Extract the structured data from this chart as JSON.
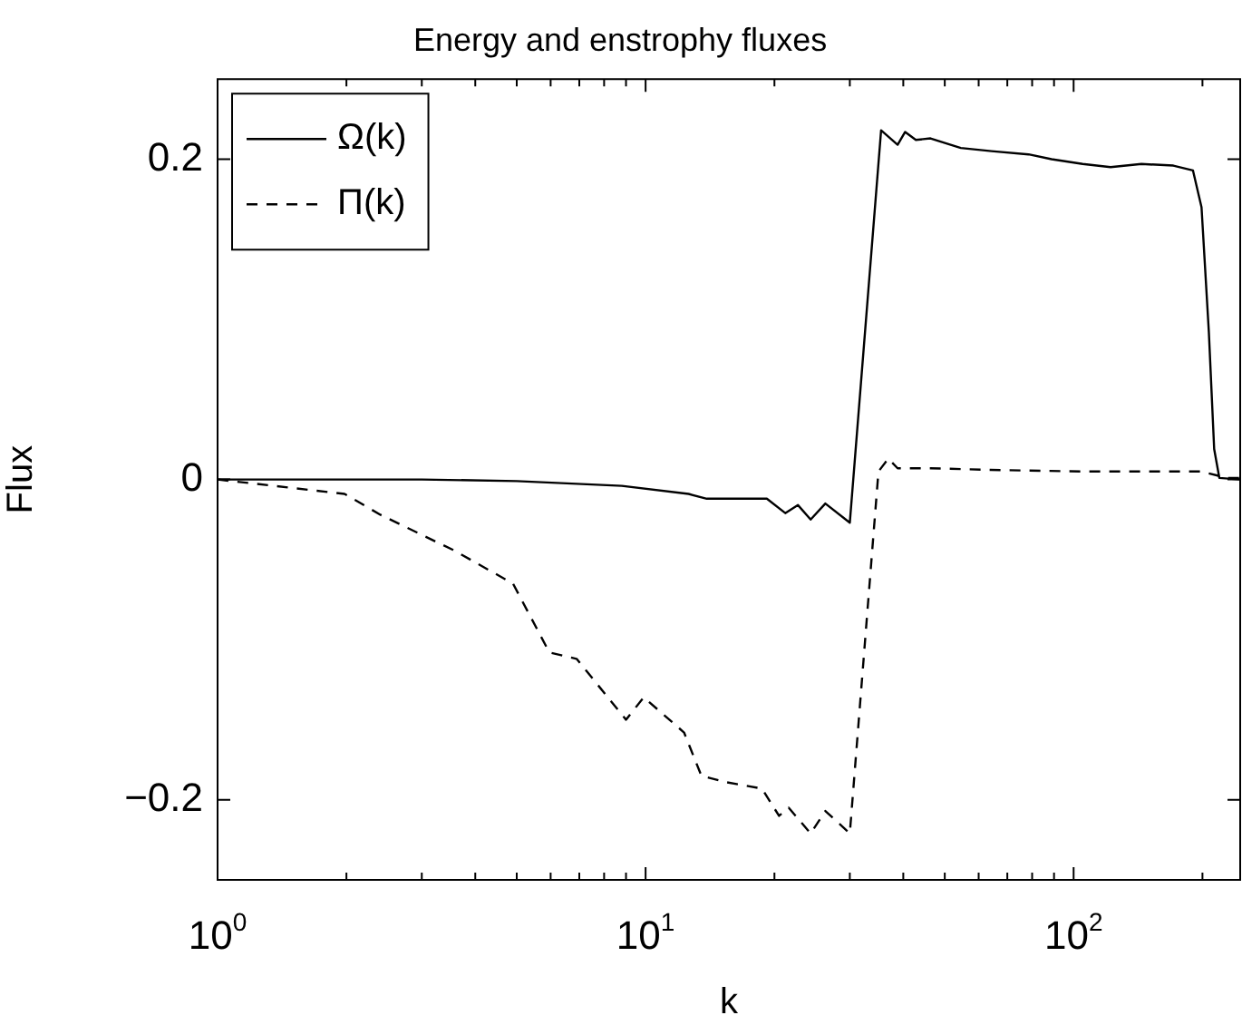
{
  "chart_data": {
    "type": "line",
    "title": "Energy and enstrophy fluxes",
    "xlabel": "k",
    "ylabel": "Flux",
    "log": "x",
    "xlim": [
      1,
      245
    ],
    "ylim": [
      -0.25,
      0.25
    ],
    "xticks": [
      {
        "value": 1,
        "label": "10$^{0}$"
      },
      {
        "value": 2,
        "label": null
      },
      {
        "value": 3,
        "label": null
      },
      {
        "value": 4,
        "label": null
      },
      {
        "value": 5,
        "label": null
      },
      {
        "value": 6,
        "label": null
      },
      {
        "value": 7,
        "label": null
      },
      {
        "value": 8,
        "label": null
      },
      {
        "value": 9,
        "label": null
      },
      {
        "value": 10,
        "label": "10$^{1}$"
      },
      {
        "value": 20,
        "label": null
      },
      {
        "value": 30,
        "label": null
      },
      {
        "value": 40,
        "label": null
      },
      {
        "value": 50,
        "label": null
      },
      {
        "value": 60,
        "label": null
      },
      {
        "value": 70,
        "label": null
      },
      {
        "value": 80,
        "label": null
      },
      {
        "value": 90,
        "label": null
      },
      {
        "value": 100,
        "label": "10$^{2}$"
      },
      {
        "value": 200,
        "label": null
      }
    ],
    "yticks": [
      {
        "value": -0.2,
        "label": "−0.2"
      },
      0,
      0.2
    ],
    "grid": false,
    "legend": "top left",
    "marker": "none",
    "series": [
      {
        "name": "Ω(k)",
        "color": "#000000",
        "line_style": "solid",
        "x": [
          1,
          3,
          5,
          8.8,
          12.6,
          13.9,
          19.2,
          21.2,
          22.7,
          24.3,
          26.3,
          30,
          35.5,
          38.8,
          40.4,
          42.8,
          46.3,
          54.5,
          64.3,
          78.5,
          88.8,
          105,
          122,
          144,
          171,
          190,
          199,
          207,
          213,
          219,
          245
        ],
        "values": [
          0,
          0,
          -0.001,
          -0.004,
          -0.009,
          -0.012,
          -0.012,
          -0.021,
          -0.016,
          -0.025,
          -0.015,
          -0.027,
          0.218,
          0.209,
          0.217,
          0.212,
          0.213,
          0.207,
          0.205,
          0.203,
          0.2,
          0.197,
          0.195,
          0.197,
          0.196,
          0.193,
          0.17,
          0.092,
          0.019,
          0.001,
          0
        ]
      },
      {
        "name": "Π(k)",
        "color": "#000000",
        "line_style": "dashed",
        "x": [
          1,
          1.98,
          2.4,
          3.55,
          4.9,
          5.96,
          6.9,
          9,
          9.9,
          12.3,
          13.5,
          15.4,
          18.7,
          20.5,
          21.6,
          24.3,
          26.3,
          30,
          35,
          36.9,
          38.8,
          46.3,
          64,
          105,
          199,
          228,
          245
        ],
        "values": [
          0,
          -0.009,
          -0.022,
          -0.044,
          -0.065,
          -0.108,
          -0.112,
          -0.15,
          -0.136,
          -0.158,
          -0.185,
          -0.189,
          -0.193,
          -0.21,
          -0.205,
          -0.221,
          -0.207,
          -0.221,
          0.005,
          0.013,
          0.007,
          0.007,
          0.006,
          0.005,
          0.005,
          0.001,
          0.001
        ]
      }
    ]
  }
}
